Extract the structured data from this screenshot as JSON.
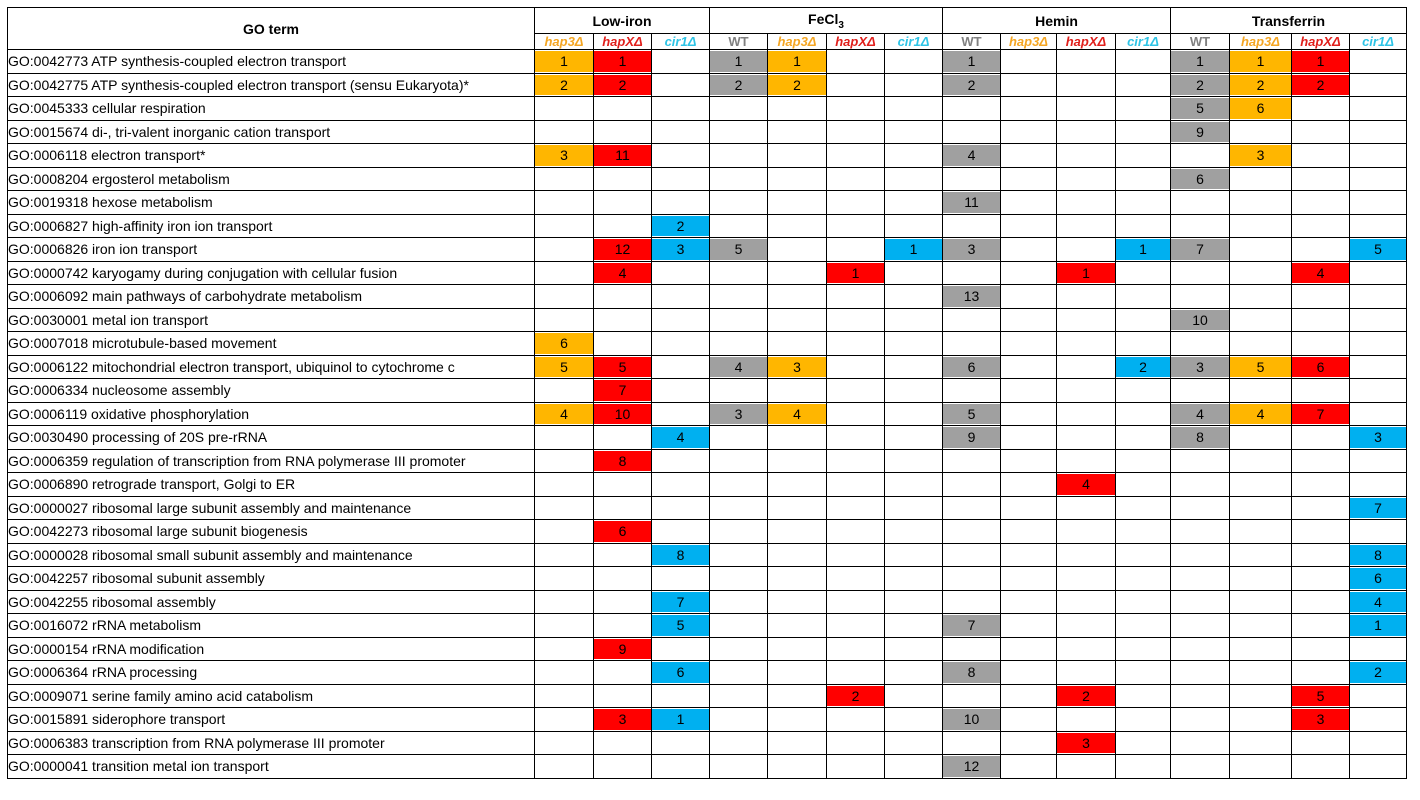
{
  "chart_data": {
    "type": "table",
    "term_header": "GO term",
    "groups": [
      {
        "key": "lowiron",
        "label": "Low-iron",
        "sub": null,
        "strains": [
          "hap3",
          "hapX",
          "cir1"
        ]
      },
      {
        "key": "fecl3",
        "label": "FeCl",
        "sub": "3",
        "strains": [
          "WT",
          "hap3",
          "hapX",
          "cir1"
        ]
      },
      {
        "key": "hemin",
        "label": "Hemin",
        "sub": null,
        "strains": [
          "WT",
          "hap3",
          "hapX",
          "cir1"
        ]
      },
      {
        "key": "transferrin",
        "label": "Transferrin",
        "sub": null,
        "strains": [
          "WT",
          "hap3",
          "hapX",
          "cir1"
        ]
      }
    ],
    "strains": {
      "WT": {
        "label": "WT",
        "color": "#808080",
        "italic": false
      },
      "hap3": {
        "label": "hap3Δ",
        "color": "#f5a623",
        "italic": true
      },
      "hapX": {
        "label": "hapXΔ",
        "color": "#e0201c",
        "italic": true
      },
      "cir1": {
        "label": "cir1Δ",
        "color": "#2ec4e6",
        "italic": true
      }
    },
    "cell_colors": {
      "WT": "#a0a0a0",
      "hap3": "#ffb600",
      "hapX": "#ff0000",
      "cir1": "#00b0f0"
    },
    "rows": [
      {
        "term": "GO:0042773  ATP synthesis-coupled electron transport",
        "v": [
          "1",
          "1",
          "",
          "1",
          "1",
          "",
          "",
          "1",
          "",
          "",
          "",
          "1",
          "1",
          "1",
          ""
        ]
      },
      {
        "term": "GO:0042775  ATP synthesis-coupled electron transport (sensu Eukaryota)*",
        "v": [
          "2",
          "2",
          "",
          "2",
          "2",
          "",
          "",
          "2",
          "",
          "",
          "",
          "2",
          "2",
          "2",
          ""
        ]
      },
      {
        "term": "GO:0045333  cellular respiration",
        "v": [
          "",
          "",
          "",
          "",
          "",
          "",
          "",
          "",
          "",
          "",
          "",
          "5",
          "6",
          "",
          ""
        ]
      },
      {
        "term": "GO:0015674  di-, tri-valent inorganic cation transport",
        "v": [
          "",
          "",
          "",
          "",
          "",
          "",
          "",
          "",
          "",
          "",
          "",
          "9",
          "",
          "",
          ""
        ]
      },
      {
        "term": "GO:0006118  electron transport*",
        "v": [
          "3",
          "11",
          "",
          "",
          "",
          "",
          "",
          "4",
          "",
          "",
          "",
          "",
          "3",
          "",
          ""
        ]
      },
      {
        "term": "GO:0008204  ergosterol metabolism",
        "v": [
          "",
          "",
          "",
          "",
          "",
          "",
          "",
          "",
          "",
          "",
          "",
          "6",
          "",
          "",
          ""
        ]
      },
      {
        "term": "GO:0019318  hexose metabolism",
        "v": [
          "",
          "",
          "",
          "",
          "",
          "",
          "",
          "11",
          "",
          "",
          "",
          "",
          "",
          "",
          ""
        ]
      },
      {
        "term": "GO:0006827  high-affinity iron ion transport",
        "v": [
          "",
          "",
          "2",
          "",
          "",
          "",
          "",
          "",
          "",
          "",
          "",
          "",
          "",
          "",
          ""
        ]
      },
      {
        "term": "GO:0006826  iron ion transport",
        "v": [
          "",
          "12",
          "3",
          "5",
          "",
          "",
          "1",
          "3",
          "",
          "",
          "1",
          "7",
          "",
          "",
          "5"
        ]
      },
      {
        "term": "GO:0000742  karyogamy during conjugation with cellular fusion",
        "v": [
          "",
          "4",
          "",
          "",
          "",
          "1",
          "",
          "",
          "",
          "1",
          "",
          "",
          "",
          "4",
          ""
        ]
      },
      {
        "term": "GO:0006092  main pathways of carbohydrate metabolism",
        "v": [
          "",
          "",
          "",
          "",
          "",
          "",
          "",
          "13",
          "",
          "",
          "",
          "",
          "",
          "",
          ""
        ]
      },
      {
        "term": "GO:0030001  metal ion transport",
        "v": [
          "",
          "",
          "",
          "",
          "",
          "",
          "",
          "",
          "",
          "",
          "",
          "10",
          "",
          "",
          ""
        ]
      },
      {
        "term": "GO:0007018  microtubule-based movement",
        "v": [
          "6",
          "",
          "",
          "",
          "",
          "",
          "",
          "",
          "",
          "",
          "",
          "",
          "",
          "",
          ""
        ]
      },
      {
        "term": "GO:0006122  mitochondrial electron transport, ubiquinol to cytochrome c",
        "v": [
          "5",
          "5",
          "",
          "4",
          "3",
          "",
          "",
          "6",
          "",
          "",
          "2",
          "3",
          "5",
          "6",
          ""
        ]
      },
      {
        "term": "GO:0006334  nucleosome assembly",
        "v": [
          "",
          "7",
          "",
          "",
          "",
          "",
          "",
          "",
          "",
          "",
          "",
          "",
          "",
          "",
          ""
        ]
      },
      {
        "term": "GO:0006119  oxidative phosphorylation",
        "v": [
          "4",
          "10",
          "",
          "3",
          "4",
          "",
          "",
          "5",
          "",
          "",
          "",
          "4",
          "4",
          "7",
          ""
        ]
      },
      {
        "term": "GO:0030490  processing of 20S pre-rRNA",
        "v": [
          "",
          "",
          "4",
          "",
          "",
          "",
          "",
          "9",
          "",
          "",
          "",
          "8",
          "",
          "",
          "3"
        ]
      },
      {
        "term": "GO:0006359  regulation of transcription from RNA polymerase III promoter",
        "v": [
          "",
          "8",
          "",
          "",
          "",
          "",
          "",
          "",
          "",
          "",
          "",
          "",
          "",
          "",
          ""
        ]
      },
      {
        "term": "GO:0006890  retrograde transport, Golgi to ER",
        "v": [
          "",
          "",
          "",
          "",
          "",
          "",
          "",
          "",
          "",
          "4",
          "",
          "",
          "",
          "",
          ""
        ]
      },
      {
        "term": "GO:0000027  ribosomal large subunit assembly and maintenance",
        "v": [
          "",
          "",
          "",
          "",
          "",
          "",
          "",
          "",
          "",
          "",
          "",
          "",
          "",
          "",
          "7"
        ]
      },
      {
        "term": "GO:0042273  ribosomal large subunit biogenesis",
        "v": [
          "",
          "6",
          "",
          "",
          "",
          "",
          "",
          "",
          "",
          "",
          "",
          "",
          "",
          "",
          ""
        ]
      },
      {
        "term": "GO:0000028  ribosomal small subunit assembly and maintenance",
        "v": [
          "",
          "",
          "8",
          "",
          "",
          "",
          "",
          "",
          "",
          "",
          "",
          "",
          "",
          "",
          "8"
        ]
      },
      {
        "term": "GO:0042257  ribosomal subunit assembly",
        "v": [
          "",
          "",
          "",
          "",
          "",
          "",
          "",
          "",
          "",
          "",
          "",
          "",
          "",
          "",
          "6"
        ]
      },
      {
        "term": "GO:0042255  ribosomal assembly",
        "v": [
          "",
          "",
          "7",
          "",
          "",
          "",
          "",
          "",
          "",
          "",
          "",
          "",
          "",
          "",
          "4"
        ]
      },
      {
        "term": "GO:0016072  rRNA metabolism",
        "v": [
          "",
          "",
          "5",
          "",
          "",
          "",
          "",
          "7",
          "",
          "",
          "",
          "",
          "",
          "",
          "1"
        ]
      },
      {
        "term": "GO:0000154  rRNA modification",
        "v": [
          "",
          "9",
          "",
          "",
          "",
          "",
          "",
          "",
          "",
          "",
          "",
          "",
          "",
          "",
          ""
        ]
      },
      {
        "term": "GO:0006364  rRNA processing",
        "v": [
          "",
          "",
          "6",
          "",
          "",
          "",
          "",
          "8",
          "",
          "",
          "",
          "",
          "",
          "",
          "2"
        ]
      },
      {
        "term": "GO:0009071  serine family amino acid catabolism",
        "v": [
          "",
          "",
          "",
          "",
          "",
          "2",
          "",
          "",
          "",
          "2",
          "",
          "",
          "",
          "5",
          ""
        ]
      },
      {
        "term": "GO:0015891  siderophore transport",
        "v": [
          "",
          "3",
          "1",
          "",
          "",
          "",
          "",
          "10",
          "",
          "",
          "",
          "",
          "",
          "3",
          ""
        ]
      },
      {
        "term": "GO:0006383  transcription from RNA polymerase III promoter",
        "v": [
          "",
          "",
          "",
          "",
          "",
          "",
          "",
          "",
          "",
          "3",
          "",
          "",
          "",
          "",
          ""
        ]
      },
      {
        "term": "GO:0000041  transition metal ion transport",
        "v": [
          "",
          "",
          "",
          "",
          "",
          "",
          "",
          "12",
          "",
          "",
          "",
          "",
          "",
          "",
          ""
        ]
      }
    ]
  }
}
